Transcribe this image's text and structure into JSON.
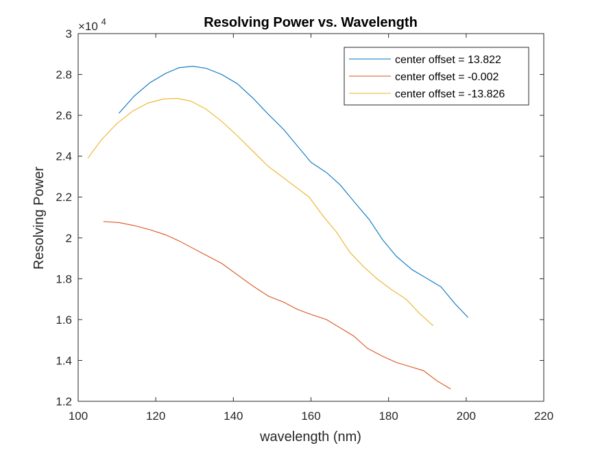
{
  "chart_data": {
    "type": "line",
    "title": "Resolving Power vs. Wavelength",
    "xlabel": "wavelength (nm)",
    "ylabel": "Resolving Power",
    "y_exponent_label": "×10",
    "y_exponent_power": "4",
    "xlim": [
      100,
      220
    ],
    "ylim": [
      12000,
      30000
    ],
    "x_ticks": [
      100,
      120,
      140,
      160,
      180,
      200,
      220
    ],
    "x_tick_labels": [
      "100",
      "120",
      "140",
      "160",
      "180",
      "200",
      "220"
    ],
    "y_ticks": [
      12000,
      14000,
      16000,
      18000,
      20000,
      22000,
      24000,
      26000,
      28000,
      30000
    ],
    "y_tick_labels": [
      "1.2",
      "1.4",
      "1.6",
      "1.8",
      "2",
      "2.2",
      "2.4",
      "2.6",
      "2.8",
      "3"
    ],
    "grid": false,
    "legend_position": "top-right",
    "series": [
      {
        "name": "center offset = 13.822",
        "color": "#0072BD",
        "x": [
          110.5,
          114.5,
          118.5,
          122.5,
          126.0,
          129.5,
          133.0,
          137.0,
          141.0,
          145.0,
          149.0,
          153.0,
          156.5,
          160.0,
          164.0,
          167.5,
          171.0,
          175.0,
          178.5,
          182.0,
          186.0,
          190.0,
          193.5,
          197.0,
          200.5
        ],
        "y": [
          26100,
          26950,
          27600,
          28050,
          28330,
          28400,
          28300,
          28000,
          27550,
          26850,
          26050,
          25300,
          24500,
          23700,
          23200,
          22600,
          21800,
          20900,
          19900,
          19100,
          18450,
          18000,
          17600,
          16800,
          16100
        ]
      },
      {
        "name": "center offset = -0.002",
        "color": "#D95319",
        "x": [
          106.5,
          110.5,
          114.5,
          118.5,
          122.5,
          126.0,
          129.5,
          133.0,
          137.0,
          141.0,
          145.0,
          149.0,
          153.0,
          156.5,
          160.0,
          164.0,
          167.5,
          171.0,
          174.5,
          178.5,
          182.0,
          185.5,
          189.0,
          192.5,
          196.0
        ],
        "y": [
          20800,
          20750,
          20600,
          20400,
          20150,
          19850,
          19500,
          19150,
          18750,
          18200,
          17650,
          17150,
          16850,
          16500,
          16250,
          16000,
          15600,
          15200,
          14600,
          14200,
          13900,
          13700,
          13500,
          13000,
          12600
        ]
      },
      {
        "name": "center offset = -13.826",
        "color": "#EDB120",
        "x": [
          102.5,
          106.0,
          110.0,
          114.0,
          118.0,
          122.0,
          125.5,
          129.0,
          133.0,
          137.0,
          141.0,
          145.0,
          149.0,
          152.5,
          156.0,
          159.5,
          163.0,
          166.5,
          170.0,
          173.5,
          177.0,
          180.5,
          184.5,
          188.0,
          191.5
        ],
        "y": [
          23900,
          24800,
          25600,
          26200,
          26600,
          26800,
          26830,
          26700,
          26300,
          25700,
          25000,
          24250,
          23500,
          23000,
          22500,
          22000,
          21100,
          20300,
          19300,
          18600,
          18000,
          17500,
          17000,
          16300,
          15700
        ]
      }
    ]
  }
}
